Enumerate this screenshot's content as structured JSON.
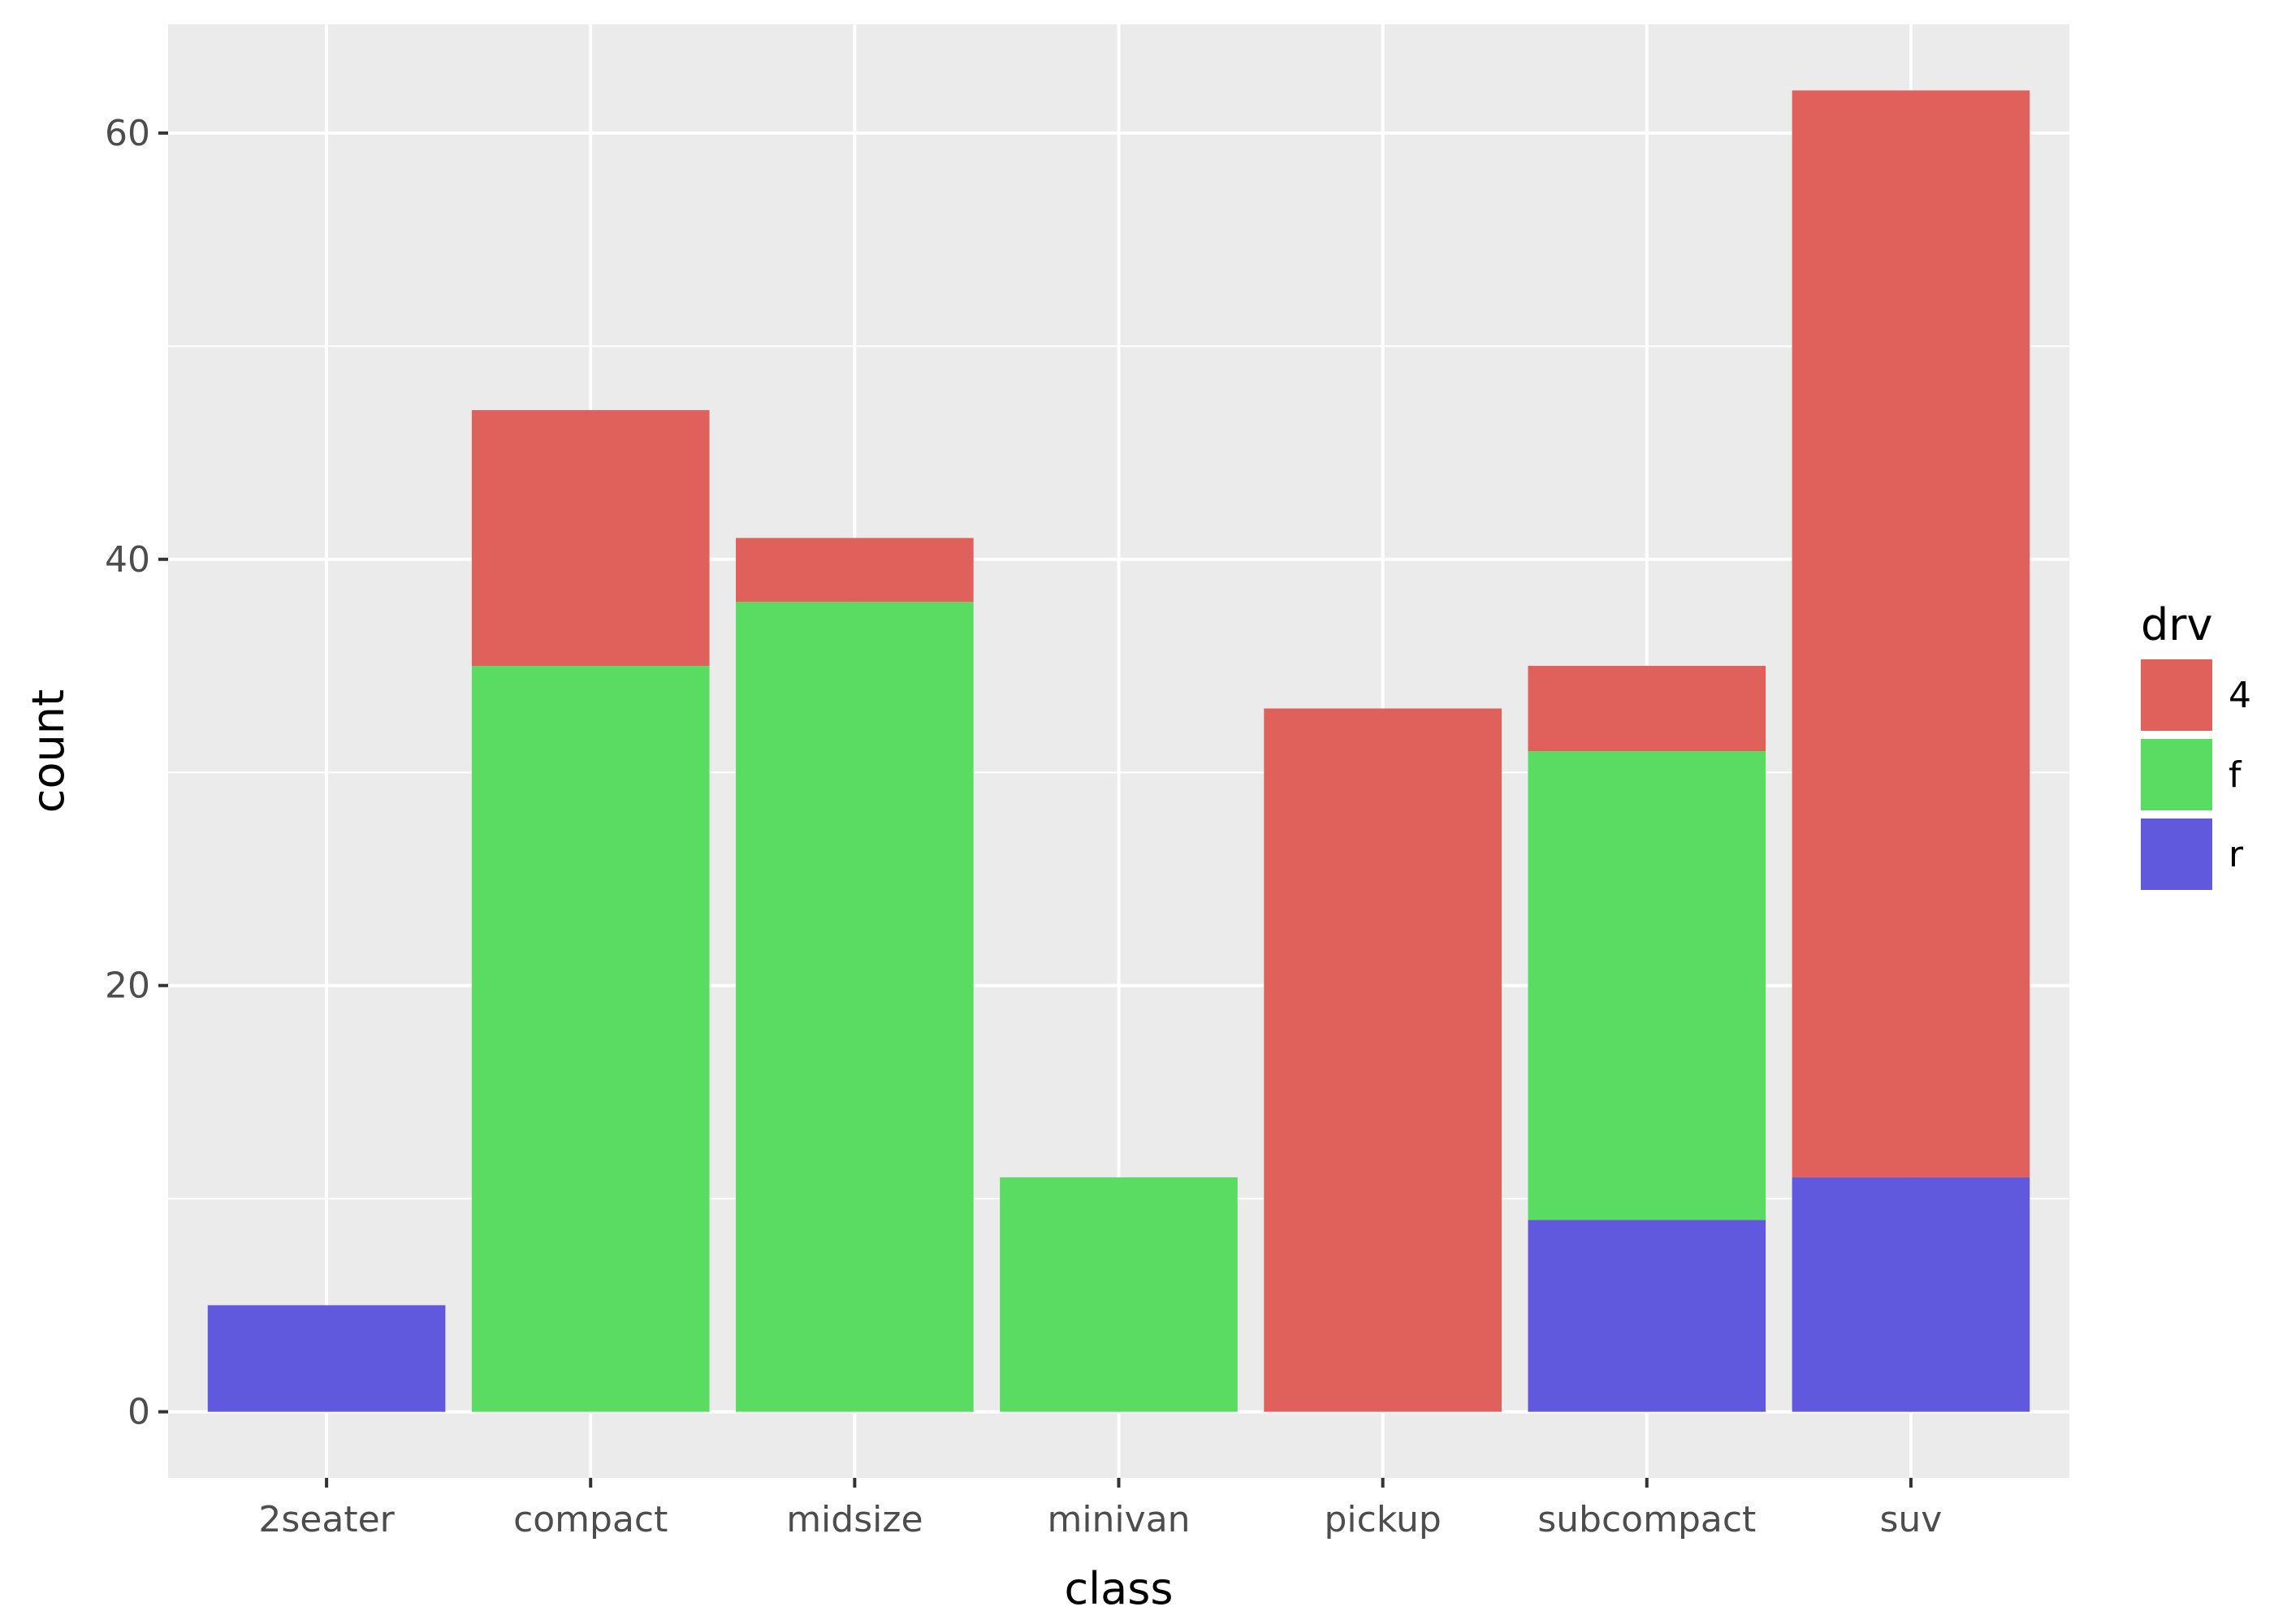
{
  "chart_data": {
    "type": "bar",
    "stacked": true,
    "categories": [
      "2seater",
      "compact",
      "midsize",
      "minivan",
      "pickup",
      "subcompact",
      "suv"
    ],
    "series": [
      {
        "name": "4",
        "color": "#E0605B",
        "values": [
          0,
          12,
          3,
          0,
          33,
          4,
          51
        ]
      },
      {
        "name": "f",
        "color": "#5ADC62",
        "values": [
          0,
          35,
          38,
          11,
          0,
          22,
          0
        ]
      },
      {
        "name": "r",
        "color": "#6058DD",
        "values": [
          5,
          0,
          0,
          0,
          0,
          9,
          11
        ]
      }
    ],
    "stack_order_bottom_to_top": [
      "r",
      "f",
      "4"
    ],
    "xlabel": "class",
    "ylabel": "count",
    "yticks": [
      0,
      20,
      40,
      60
    ],
    "ylim": [
      -3.1,
      65.1
    ],
    "grid": true,
    "legend": {
      "title": "drv",
      "position": "right"
    },
    "panel_background": "#EBEBEB",
    "grid_color": "#FFFFFF"
  }
}
